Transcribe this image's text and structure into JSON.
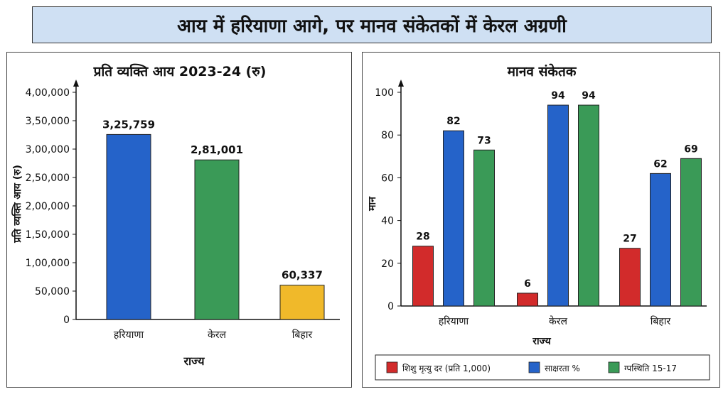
{
  "headline": "आय में हरियाणा आगे, पर मानव संकेतकों में केरल अग्रणी",
  "chart_data": [
    {
      "type": "bar",
      "title": "प्रति व्यक्ति आय 2023-24 (रु)",
      "xlabel": "राज्य",
      "ylabel": "प्रति व्यक्ति आय (रु)",
      "ylim": [
        0,
        400000
      ],
      "yticks": [
        "0",
        "50,000",
        "1,00,000",
        "1,50,000",
        "2,00,000",
        "2,50,000",
        "3,00,000",
        "3,50,000",
        "4,00,000"
      ],
      "categories": [
        "हरियाणा",
        "केरल",
        "बिहार"
      ],
      "values": [
        325759,
        281001,
        60337
      ],
      "value_labels": [
        "3,25,759",
        "2,81,001",
        "60,337"
      ],
      "colors": [
        "#2563c9",
        "#3a9a57",
        "#f0b92a"
      ],
      "grid": false
    },
    {
      "type": "bar",
      "title": "मानव संकेतक",
      "xlabel": "राज्य",
      "ylabel": "मान",
      "ylim": [
        0,
        100
      ],
      "yticks": [
        "0",
        "20",
        "40",
        "60",
        "80",
        "100"
      ],
      "categories": [
        "हरियाणा",
        "केरल",
        "बिहार"
      ],
      "series": [
        {
          "name": "शिशु मृत्यु दर (प्रति 1,000)",
          "color": "#d22b2b",
          "values": [
            28,
            6,
            27
          ]
        },
        {
          "name": "साक्षरता %",
          "color": "#2563c9",
          "values": [
            82,
            94,
            62
          ]
        },
        {
          "name": "ग्पस्थिति 15-17",
          "color": "#3a9a57",
          "values": [
            73,
            94,
            69
          ]
        }
      ],
      "legend": "bottom",
      "grid": false
    }
  ]
}
